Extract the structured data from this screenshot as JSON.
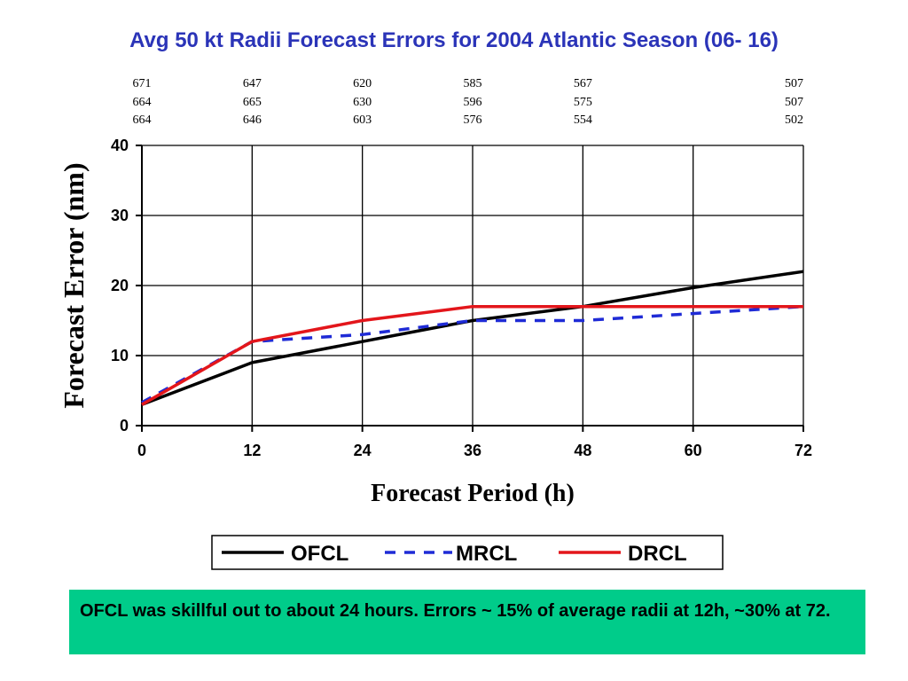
{
  "slide": {
    "title": "Avg 50 kt Radii Forecast Errors for 2004 Atlantic Season (06- 16)",
    "note": "OFCL was skillful out to about 24 hours. Errors ~ 15% of average radii at 12h, ~30% at 72."
  },
  "chart_data": {
    "type": "line",
    "title": "Avg 50 kt Radii Forecast Errors for 2004 Atlantic Season (06- 16)",
    "xlabel": "Forecast Period (h)",
    "ylabel": "Forecast Error (nm)",
    "x": [
      0,
      12,
      24,
      36,
      48,
      60,
      72
    ],
    "xticks": [
      "0",
      "12",
      "24",
      "36",
      "48",
      "60",
      "72"
    ],
    "yticks": [
      "0",
      "10",
      "20",
      "30",
      "40"
    ],
    "xlim": [
      0,
      72
    ],
    "ylim": [
      0,
      40
    ],
    "grid": true,
    "legend_position": "bottom",
    "series": [
      {
        "name": "OFCL",
        "color": "#000000",
        "dash": "solid",
        "values": [
          3,
          9,
          12,
          15,
          17,
          19.7,
          22
        ]
      },
      {
        "name": "MRCL",
        "color": "#1f2bd6",
        "dash": "dashed",
        "values": [
          3.3,
          12,
          13,
          15,
          15,
          16,
          17
        ]
      },
      {
        "name": "DRCL",
        "color": "#e3161b",
        "dash": "solid",
        "values": [
          3,
          12,
          15,
          17,
          17,
          17,
          17
        ]
      }
    ],
    "case_counts": {
      "x": [
        0,
        12,
        24,
        36,
        48,
        72
      ],
      "rows": [
        [
          "671",
          "647",
          "620",
          "585",
          "567",
          "507"
        ],
        [
          "664",
          "665",
          "630",
          "596",
          "575",
          "507"
        ],
        [
          "664",
          "646",
          "603",
          "576",
          "554",
          "502"
        ]
      ]
    }
  }
}
